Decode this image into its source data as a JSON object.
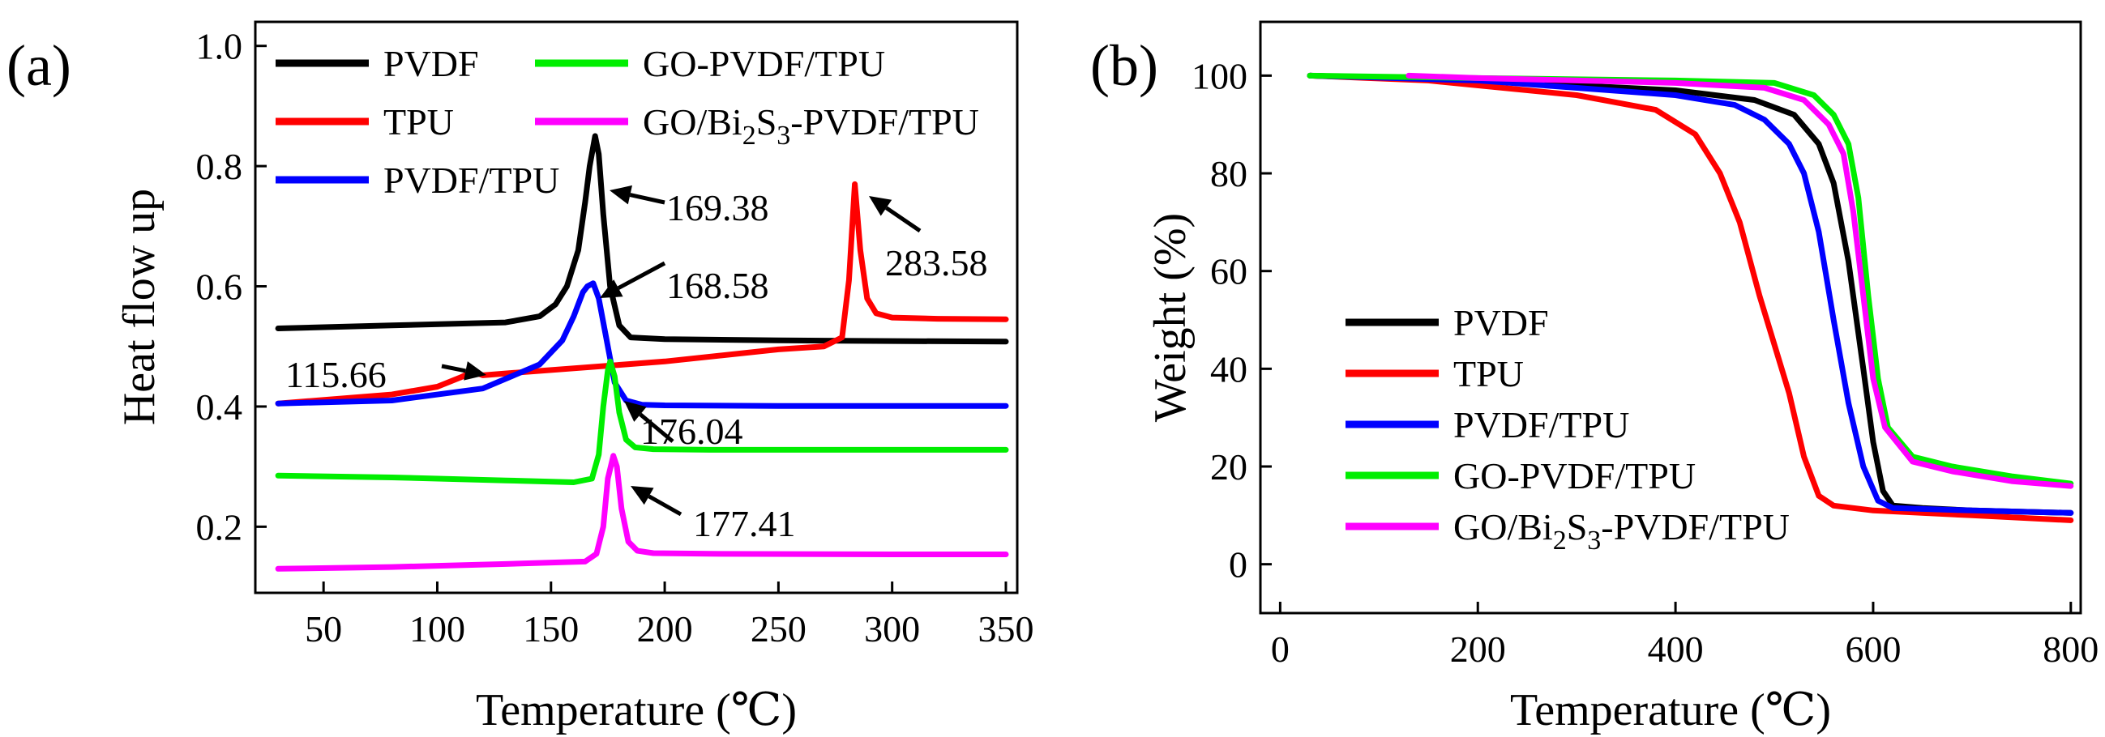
{
  "colors": {
    "PVDF": "#000000",
    "TPU": "#ff0000",
    "PVDF/TPU": "#0000ff",
    "GO-PVDF/TPU": "#00ee00",
    "GO/Bi2S3-PVDF/TPU": "#ff00ff"
  },
  "chart_data": [
    {
      "panel": "(a)",
      "type": "line",
      "xlabel": "Temperature (℃)",
      "ylabel": "Heat flow up",
      "xlim": [
        20,
        355
      ],
      "ylim": [
        0.09,
        1.04
      ],
      "xticks": [
        "50",
        "100",
        "150",
        "200",
        "250",
        "300",
        "350"
      ],
      "yticks": [
        "0.2",
        "0.4",
        "0.6",
        "0.8",
        "1.0"
      ],
      "legend": [
        {
          "label": "PVDF",
          "series": "PVDF"
        },
        {
          "label": "GO-PVDF/TPU",
          "series": "GO-PVDF/TPU"
        },
        {
          "label": "TPU",
          "series": "TPU"
        },
        {
          "label": "GO/Bi2S3-PVDF/TPU",
          "series": "GO/Bi2S3-PVDF/TPU"
        },
        {
          "label": "PVDF/TPU",
          "series": "PVDF/TPU"
        }
      ],
      "annotations": [
        {
          "text": "169.38",
          "x": 169.38
        },
        {
          "text": "283.58",
          "x": 283.58
        },
        {
          "text": "168.58",
          "x": 168.58
        },
        {
          "text": "115.66",
          "x": 115.66
        },
        {
          "text": "176.04",
          "x": 176.04
        },
        {
          "text": "177.41",
          "x": 177.41
        }
      ],
      "series": [
        {
          "name": "PVDF",
          "x": [
            30,
            80,
            130,
            145,
            152,
            157,
            162,
            165,
            167,
            169.38,
            171,
            173,
            176,
            180,
            185,
            200,
            250,
            300,
            350
          ],
          "y": [
            0.53,
            0.535,
            0.54,
            0.55,
            0.57,
            0.6,
            0.66,
            0.74,
            0.8,
            0.85,
            0.82,
            0.72,
            0.6,
            0.535,
            0.515,
            0.512,
            0.51,
            0.509,
            0.508
          ]
        },
        {
          "name": "TPU",
          "x": [
            30,
            80,
            100,
            110,
            115.66,
            120,
            130,
            200,
            250,
            270,
            278,
            281,
            283.58,
            286,
            289,
            293,
            300,
            320,
            350
          ],
          "y": [
            0.405,
            0.42,
            0.433,
            0.448,
            0.458,
            0.452,
            0.455,
            0.475,
            0.495,
            0.5,
            0.515,
            0.61,
            0.77,
            0.66,
            0.58,
            0.555,
            0.548,
            0.546,
            0.545
          ]
        },
        {
          "name": "PVDF/TPU",
          "x": [
            30,
            80,
            120,
            145,
            155,
            160,
            164,
            166,
            168.58,
            171,
            174,
            178,
            183,
            190,
            200,
            250,
            300,
            350
          ],
          "y": [
            0.405,
            0.41,
            0.43,
            0.47,
            0.51,
            0.55,
            0.59,
            0.6,
            0.605,
            0.58,
            0.52,
            0.44,
            0.41,
            0.403,
            0.402,
            0.401,
            0.401,
            0.401
          ]
        },
        {
          "name": "GO-PVDF/TPU",
          "x": [
            30,
            80,
            130,
            160,
            168,
            171,
            173,
            175,
            176.04,
            178,
            180,
            183,
            187,
            195,
            220,
            300,
            350
          ],
          "y": [
            0.285,
            0.282,
            0.277,
            0.274,
            0.28,
            0.32,
            0.4,
            0.46,
            0.475,
            0.45,
            0.39,
            0.345,
            0.332,
            0.329,
            0.328,
            0.328,
            0.328
          ]
        },
        {
          "name": "GO/Bi2S3-PVDF/TPU",
          "x": [
            30,
            80,
            130,
            165,
            170,
            173,
            175,
            177.41,
            179,
            181,
            184,
            188,
            195,
            220,
            300,
            350
          ],
          "y": [
            0.13,
            0.133,
            0.138,
            0.142,
            0.155,
            0.2,
            0.28,
            0.318,
            0.3,
            0.23,
            0.175,
            0.16,
            0.156,
            0.155,
            0.154,
            0.154
          ]
        }
      ]
    },
    {
      "panel": "(b)",
      "type": "line",
      "xlabel": "Temperature (℃)",
      "ylabel": "Weight (%)",
      "xlim": [
        -20,
        810
      ],
      "ylim": [
        -10,
        111
      ],
      "xticks": [
        "0",
        "200",
        "400",
        "600",
        "800"
      ],
      "yticks": [
        "0",
        "20",
        "40",
        "60",
        "80",
        "100"
      ],
      "legend": [
        {
          "label": "PVDF",
          "series": "PVDF"
        },
        {
          "label": "TPU",
          "series": "TPU"
        },
        {
          "label": "PVDF/TPU",
          "series": "PVDF/TPU"
        },
        {
          "label": "GO-PVDF/TPU",
          "series": "GO-PVDF/TPU"
        },
        {
          "label": "GO/Bi2S3-PVDF/TPU",
          "series": "GO/Bi2S3-PVDF/TPU"
        }
      ],
      "series": [
        {
          "name": "PVDF",
          "x": [
            30,
            200,
            400,
            480,
            520,
            545,
            560,
            575,
            590,
            600,
            610,
            620,
            650,
            700,
            800
          ],
          "y": [
            100,
            99,
            97,
            95,
            92,
            86,
            78,
            62,
            40,
            25,
            15,
            12,
            11.5,
            11,
            10.5
          ]
        },
        {
          "name": "TPU",
          "x": [
            30,
            150,
            300,
            380,
            420,
            445,
            465,
            485,
            500,
            515,
            530,
            545,
            560,
            600,
            700,
            800
          ],
          "y": [
            100,
            99,
            96,
            93,
            88,
            80,
            70,
            55,
            45,
            35,
            22,
            14,
            12,
            11,
            10,
            9
          ]
        },
        {
          "name": "PVDF/TPU",
          "x": [
            30,
            200,
            400,
            460,
            490,
            515,
            530,
            545,
            560,
            575,
            590,
            605,
            620,
            700,
            800
          ],
          "y": [
            100,
            99,
            96,
            94,
            91,
            86,
            80,
            68,
            50,
            33,
            20,
            13,
            11.5,
            11,
            10.5
          ]
        },
        {
          "name": "GO-PVDF/TPU",
          "x": [
            30,
            200,
            400,
            500,
            540,
            560,
            575,
            585,
            595,
            605,
            615,
            640,
            680,
            740,
            800
          ],
          "y": [
            100,
            99.5,
            99,
            98.5,
            96,
            92,
            86,
            75,
            55,
            38,
            28,
            22,
            20,
            18,
            16.5
          ]
        },
        {
          "name": "GO/Bi2S3-PVDF/TPU",
          "x": [
            130,
            200,
            400,
            490,
            530,
            555,
            570,
            580,
            590,
            600,
            612,
            640,
            680,
            740,
            800
          ],
          "y": [
            100,
            99.5,
            98.5,
            97.5,
            95,
            90,
            84,
            72,
            55,
            38,
            28,
            21,
            19,
            17,
            16
          ]
        }
      ]
    }
  ]
}
